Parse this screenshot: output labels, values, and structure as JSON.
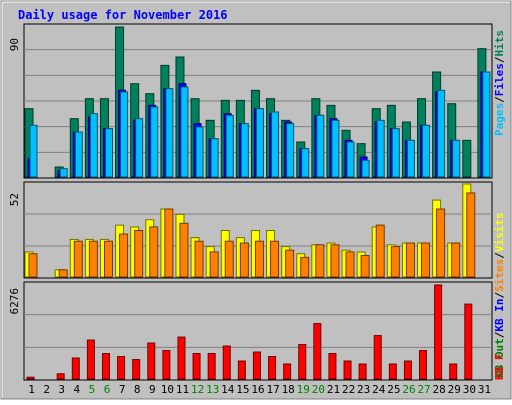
{
  "title": "Daily usage for November 2016",
  "colors": {
    "bg": "#C0C0C0",
    "hits": "#00805C",
    "files": "#0000FF",
    "pages": "#00C0FF",
    "visits": "#FFFF00",
    "sites": "#FF8000",
    "kin": "#0000FF",
    "kout": "#008000",
    "kb": "#FF0000",
    "title": "#0000FF"
  },
  "chart_data": [
    {
      "type": "bar",
      "panel": "hits-files-pages",
      "ymax_label": "90",
      "ylim": [
        0,
        90
      ],
      "grid": true,
      "categories": [
        "1",
        "2",
        "3",
        "4",
        "5",
        "6",
        "7",
        "8",
        "9",
        "10",
        "11",
        "12",
        "13",
        "14",
        "15",
        "16",
        "17",
        "18",
        "19",
        "20",
        "21",
        "22",
        "23",
        "24",
        "25",
        "26",
        "27",
        "28",
        "29",
        "30",
        "31"
      ],
      "legend": [
        "Pages",
        "/",
        "Files",
        "/",
        "Hits"
      ],
      "series": [
        {
          "name": "Hits",
          "values": [
            41,
            0,
            6,
            35,
            47,
            47,
            90,
            56,
            50,
            67,
            72,
            47,
            34,
            46,
            46,
            52,
            47,
            34,
            21,
            47,
            43,
            28,
            20,
            41,
            43,
            33,
            47,
            63,
            44,
            22,
            77
          ]
        },
        {
          "name": "Files",
          "values": [
            11,
            0,
            4,
            27,
            36,
            29,
            52,
            34,
            43,
            53,
            56,
            32,
            23,
            38,
            32,
            41,
            38,
            33,
            17,
            37,
            35,
            22,
            12,
            33,
            29,
            22,
            31,
            51,
            22,
            0,
            63
          ]
        },
        {
          "name": "Pages",
          "values": [
            31,
            0,
            5,
            27,
            38,
            29,
            51,
            35,
            42,
            53,
            54,
            30,
            23,
            37,
            32,
            41,
            39,
            32,
            17,
            37,
            34,
            21,
            10,
            34,
            29,
            22,
            31,
            52,
            22,
            0,
            63
          ]
        }
      ]
    },
    {
      "type": "bar",
      "panel": "visits-sites",
      "ymax_label": "52",
      "ylim": [
        0,
        52
      ],
      "grid": true,
      "categories": [
        "1",
        "2",
        "3",
        "4",
        "5",
        "6",
        "7",
        "8",
        "9",
        "10",
        "11",
        "12",
        "13",
        "14",
        "15",
        "16",
        "17",
        "18",
        "19",
        "20",
        "21",
        "22",
        "23",
        "24",
        "25",
        "26",
        "27",
        "28",
        "29",
        "30",
        "31"
      ],
      "legend": [
        "KB Out",
        "/",
        "KB In",
        "/",
        "Sites",
        "/",
        "Visits"
      ],
      "series": [
        {
          "name": "Visits",
          "values": [
            14,
            0,
            4,
            21,
            21,
            21,
            29,
            28,
            32,
            38,
            35,
            22,
            17,
            26,
            22,
            26,
            26,
            17,
            13,
            18,
            19,
            15,
            14,
            28,
            18,
            19,
            19,
            43,
            19,
            52,
            0
          ]
        },
        {
          "name": "Sites",
          "values": [
            13,
            0,
            4,
            20,
            20,
            20,
            24,
            26,
            28,
            38,
            30,
            20,
            14,
            20,
            19,
            20,
            20,
            15,
            11,
            18,
            18,
            14,
            12,
            29,
            17,
            19,
            19,
            38,
            19,
            47,
            0
          ]
        }
      ]
    },
    {
      "type": "bar",
      "panel": "kbytes",
      "ymax_label": "6276",
      "ylim": [
        0,
        6276
      ],
      "grid": true,
      "categories": [
        "1",
        "2",
        "3",
        "4",
        "5",
        "6",
        "7",
        "8",
        "9",
        "10",
        "11",
        "12",
        "13",
        "14",
        "15",
        "16",
        "17",
        "18",
        "19",
        "20",
        "21",
        "22",
        "23",
        "24",
        "25",
        "26",
        "27",
        "28",
        "29",
        "30",
        "31"
      ],
      "legend": [
        "KB F"
      ],
      "series": [
        {
          "name": "KB F",
          "values": [
            120,
            0,
            350,
            1400,
            2600,
            1700,
            1500,
            1300,
            2400,
            1900,
            2800,
            1700,
            1700,
            2200,
            1200,
            1800,
            1500,
            1000,
            2300,
            3700,
            1700,
            1200,
            1000,
            2900,
            1000,
            1200,
            1900,
            6276,
            1000,
            5000,
            0
          ]
        }
      ]
    }
  ],
  "x_labels": [
    "1",
    "2",
    "3",
    "4",
    "5",
    "6",
    "7",
    "8",
    "9",
    "10",
    "11",
    "12",
    "13",
    "14",
    "15",
    "16",
    "17",
    "18",
    "19",
    "20",
    "21",
    "22",
    "23",
    "24",
    "25",
    "26",
    "27",
    "28",
    "29",
    "30",
    "31"
  ],
  "weekend_days": [
    "5",
    "6",
    "12",
    "13",
    "19",
    "20",
    "26",
    "27"
  ]
}
